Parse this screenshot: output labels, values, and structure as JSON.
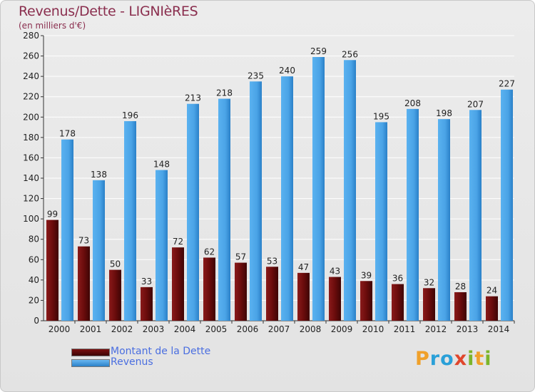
{
  "header": {
    "title": "Revenus/Dette - LIGNIèRES",
    "subtitle": "(en milliers d'€)"
  },
  "legend": {
    "items": [
      {
        "label": "Montant de la Dette",
        "color": "#7a1010"
      },
      {
        "label": "Revenus",
        "color": "#4aa3e6"
      }
    ]
  },
  "logo": {
    "text": "Proxiti",
    "letters": [
      {
        "ch": "P",
        "color": "#f0a02a"
      },
      {
        "ch": "r",
        "color": "#2aa0d8"
      },
      {
        "ch": "o",
        "color": "#2aa0d8"
      },
      {
        "ch": "x",
        "color": "#e0462c"
      },
      {
        "ch": "i",
        "color": "#7cb52a"
      },
      {
        "ch": "t",
        "color": "#f0a02a"
      },
      {
        "ch": "i",
        "color": "#7cb52a"
      }
    ]
  },
  "chart_data": {
    "type": "bar",
    "title": "Revenus/Dette - LIGNIèRES",
    "subtitle": "(en milliers d'€)",
    "categories": [
      "2000",
      "2001",
      "2002",
      "2003",
      "2004",
      "2005",
      "2006",
      "2007",
      "2008",
      "2009",
      "2010",
      "2011",
      "2012",
      "2013",
      "2014"
    ],
    "series": [
      {
        "name": "Montant de la Dette",
        "color": "#7a1010",
        "values": [
          99,
          73,
          50,
          33,
          72,
          62,
          57,
          53,
          47,
          43,
          39,
          36,
          32,
          28,
          24
        ]
      },
      {
        "name": "Revenus",
        "color": "#4aa3e6",
        "values": [
          178,
          138,
          196,
          148,
          213,
          218,
          235,
          240,
          259,
          256,
          195,
          208,
          198,
          207,
          227
        ]
      }
    ],
    "ylim": [
      0,
      280
    ],
    "yticks": [
      0,
      20,
      40,
      60,
      80,
      100,
      120,
      140,
      160,
      180,
      200,
      220,
      240,
      260,
      280
    ],
    "grid": true,
    "legend_position": "bottom-left"
  }
}
